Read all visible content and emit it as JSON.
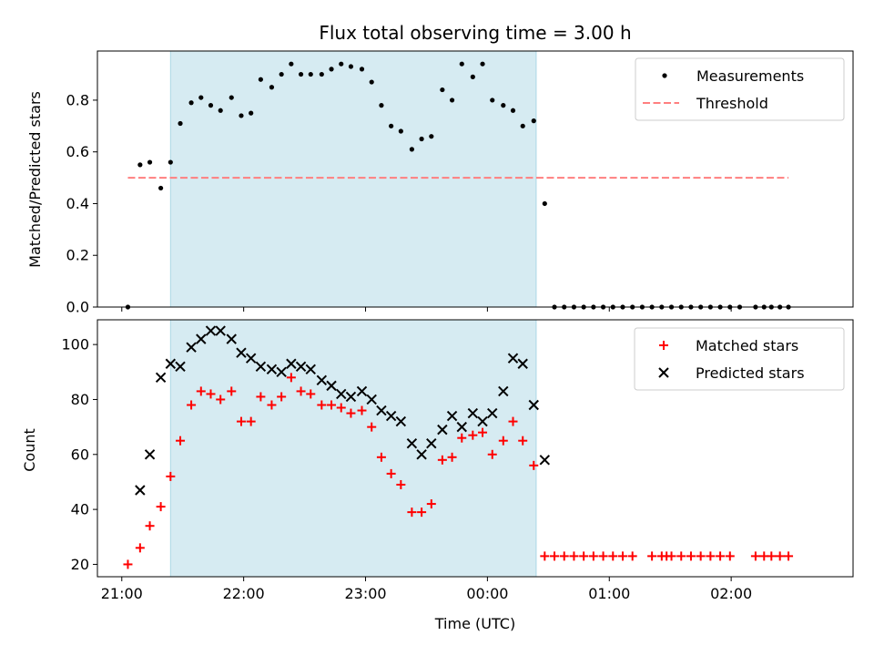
{
  "chart_data": [
    {
      "type": "scatter",
      "title": "Flux total observing time = 3.00 h",
      "xlabel": "",
      "ylabel": "Matched/Predicted stars",
      "ylim": [
        0,
        0.99
      ],
      "yticks": [
        "0.0",
        "0.2",
        "0.4",
        "0.6",
        "0.8"
      ],
      "ytick_values": [
        0,
        0.2,
        0.4,
        0.6,
        0.8
      ],
      "xlim": [
        20.8,
        27.0
      ],
      "highlight_span": [
        21.4,
        24.4
      ],
      "legend": {
        "position": "upper right",
        "entries": [
          "Measurements",
          "Threshold"
        ]
      },
      "series": [
        {
          "name": "Measurements",
          "marker": "dot",
          "color": "#000000",
          "x": [
            21.05,
            21.15,
            21.23,
            21.32,
            21.4,
            21.48,
            21.57,
            21.65,
            21.73,
            21.81,
            21.9,
            21.98,
            22.06,
            22.14,
            22.23,
            22.31,
            22.39,
            22.47,
            22.55,
            22.64,
            22.72,
            22.8,
            22.88,
            22.97,
            23.05,
            23.13,
            23.21,
            23.29,
            23.38,
            23.46,
            23.54,
            23.63,
            23.71,
            23.79,
            23.88,
            23.96,
            24.04,
            24.13,
            24.21,
            24.29,
            24.38,
            24.47,
            24.55,
            24.63,
            24.71,
            24.79,
            24.87,
            24.95,
            25.03,
            25.11,
            25.19,
            25.27,
            25.35,
            25.43,
            25.51,
            25.59,
            25.67,
            25.75,
            25.83,
            25.91,
            25.99,
            26.07,
            26.2,
            26.27,
            26.33,
            26.4,
            26.47
          ],
          "y": [
            0.0,
            0.55,
            0.56,
            0.46,
            0.56,
            0.71,
            0.79,
            0.81,
            0.78,
            0.76,
            0.81,
            0.74,
            0.75,
            0.88,
            0.85,
            0.9,
            0.94,
            0.9,
            0.9,
            0.9,
            0.92,
            0.94,
            0.93,
            0.92,
            0.87,
            0.78,
            0.7,
            0.68,
            0.61,
            0.65,
            0.66,
            0.84,
            0.8,
            0.94,
            0.89,
            0.94,
            0.8,
            0.78,
            0.76,
            0.7,
            0.72,
            0.4,
            0.0,
            0.0,
            0.0,
            0.0,
            0.0,
            0.0,
            0.0,
            0.0,
            0.0,
            0.0,
            0.0,
            0.0,
            0.0,
            0.0,
            0.0,
            0.0,
            0.0,
            0.0,
            0.0,
            0.0,
            0.0,
            0.0,
            0.0,
            0.0,
            0.0
          ]
        },
        {
          "name": "Threshold",
          "style": "dashed",
          "color": "#ff7f7f",
          "x": [
            21.05,
            26.47
          ],
          "y": [
            0.5,
            0.5
          ]
        }
      ]
    },
    {
      "type": "scatter",
      "title": "",
      "xlabel": "Time (UTC)",
      "ylabel": "Count",
      "ylim": [
        15.5,
        109
      ],
      "yticks": [
        "20",
        "40",
        "60",
        "80",
        "100"
      ],
      "ytick_values": [
        20,
        40,
        60,
        80,
        100
      ],
      "xlim": [
        20.8,
        27.0
      ],
      "xticks": [
        "21:00",
        "22:00",
        "23:00",
        "00:00",
        "01:00",
        "02:00"
      ],
      "xtick_values": [
        21,
        22,
        23,
        24,
        25,
        26
      ],
      "highlight_span": [
        21.4,
        24.4
      ],
      "legend": {
        "position": "upper right",
        "entries": [
          "Matched stars",
          "Predicted stars"
        ]
      },
      "series": [
        {
          "name": "Matched stars",
          "marker": "plus",
          "color": "#ff0000",
          "x": [
            21.05,
            21.15,
            21.23,
            21.32,
            21.4,
            21.48,
            21.57,
            21.65,
            21.73,
            21.81,
            21.9,
            21.98,
            22.06,
            22.14,
            22.23,
            22.31,
            22.39,
            22.47,
            22.55,
            22.64,
            22.72,
            22.8,
            22.88,
            22.97,
            23.05,
            23.13,
            23.21,
            23.29,
            23.38,
            23.46,
            23.54,
            23.63,
            23.71,
            23.79,
            23.88,
            23.96,
            24.04,
            24.13,
            24.21,
            24.29,
            24.38,
            24.47,
            24.55,
            24.63,
            24.71,
            24.79,
            24.87,
            24.95,
            25.03,
            25.11,
            25.19,
            25.35,
            25.43,
            25.47,
            25.51,
            25.59,
            25.67,
            25.75,
            25.83,
            25.91,
            25.99,
            26.2,
            26.27,
            26.33,
            26.4,
            26.47
          ],
          "y": [
            20,
            26,
            34,
            41,
            52,
            65,
            78,
            83,
            82,
            80,
            83,
            72,
            72,
            81,
            78,
            81,
            88,
            83,
            82,
            78,
            78,
            77,
            75,
            76,
            70,
            59,
            53,
            49,
            39,
            39,
            42,
            58,
            59,
            66,
            67,
            68,
            60,
            65,
            72,
            65,
            56,
            23,
            23,
            23,
            23,
            23,
            23,
            23,
            23,
            23,
            23,
            23,
            23,
            23,
            23,
            23,
            23,
            23,
            23,
            23,
            23,
            23,
            23,
            23,
            23,
            23
          ]
        },
        {
          "name": "Predicted stars",
          "marker": "x",
          "color": "#000000",
          "x": [
            21.15,
            21.23,
            21.32,
            21.4,
            21.48,
            21.57,
            21.65,
            21.73,
            21.81,
            21.9,
            21.98,
            22.06,
            22.14,
            22.23,
            22.31,
            22.39,
            22.47,
            22.55,
            22.64,
            22.72,
            22.8,
            22.88,
            22.97,
            23.05,
            23.13,
            23.21,
            23.29,
            23.38,
            23.46,
            23.54,
            23.63,
            23.71,
            23.79,
            23.88,
            23.96,
            24.04,
            24.13,
            24.21,
            24.29,
            24.38,
            24.47
          ],
          "y": [
            47,
            60,
            88,
            93,
            92,
            99,
            102,
            105,
            105,
            102,
            97,
            95,
            92,
            91,
            90,
            93,
            92,
            91,
            87,
            85,
            82,
            81,
            83,
            80,
            76,
            74,
            72,
            64,
            60,
            64,
            69,
            74,
            70,
            75,
            72,
            75,
            83,
            95,
            93,
            78,
            58
          ]
        }
      ]
    }
  ]
}
